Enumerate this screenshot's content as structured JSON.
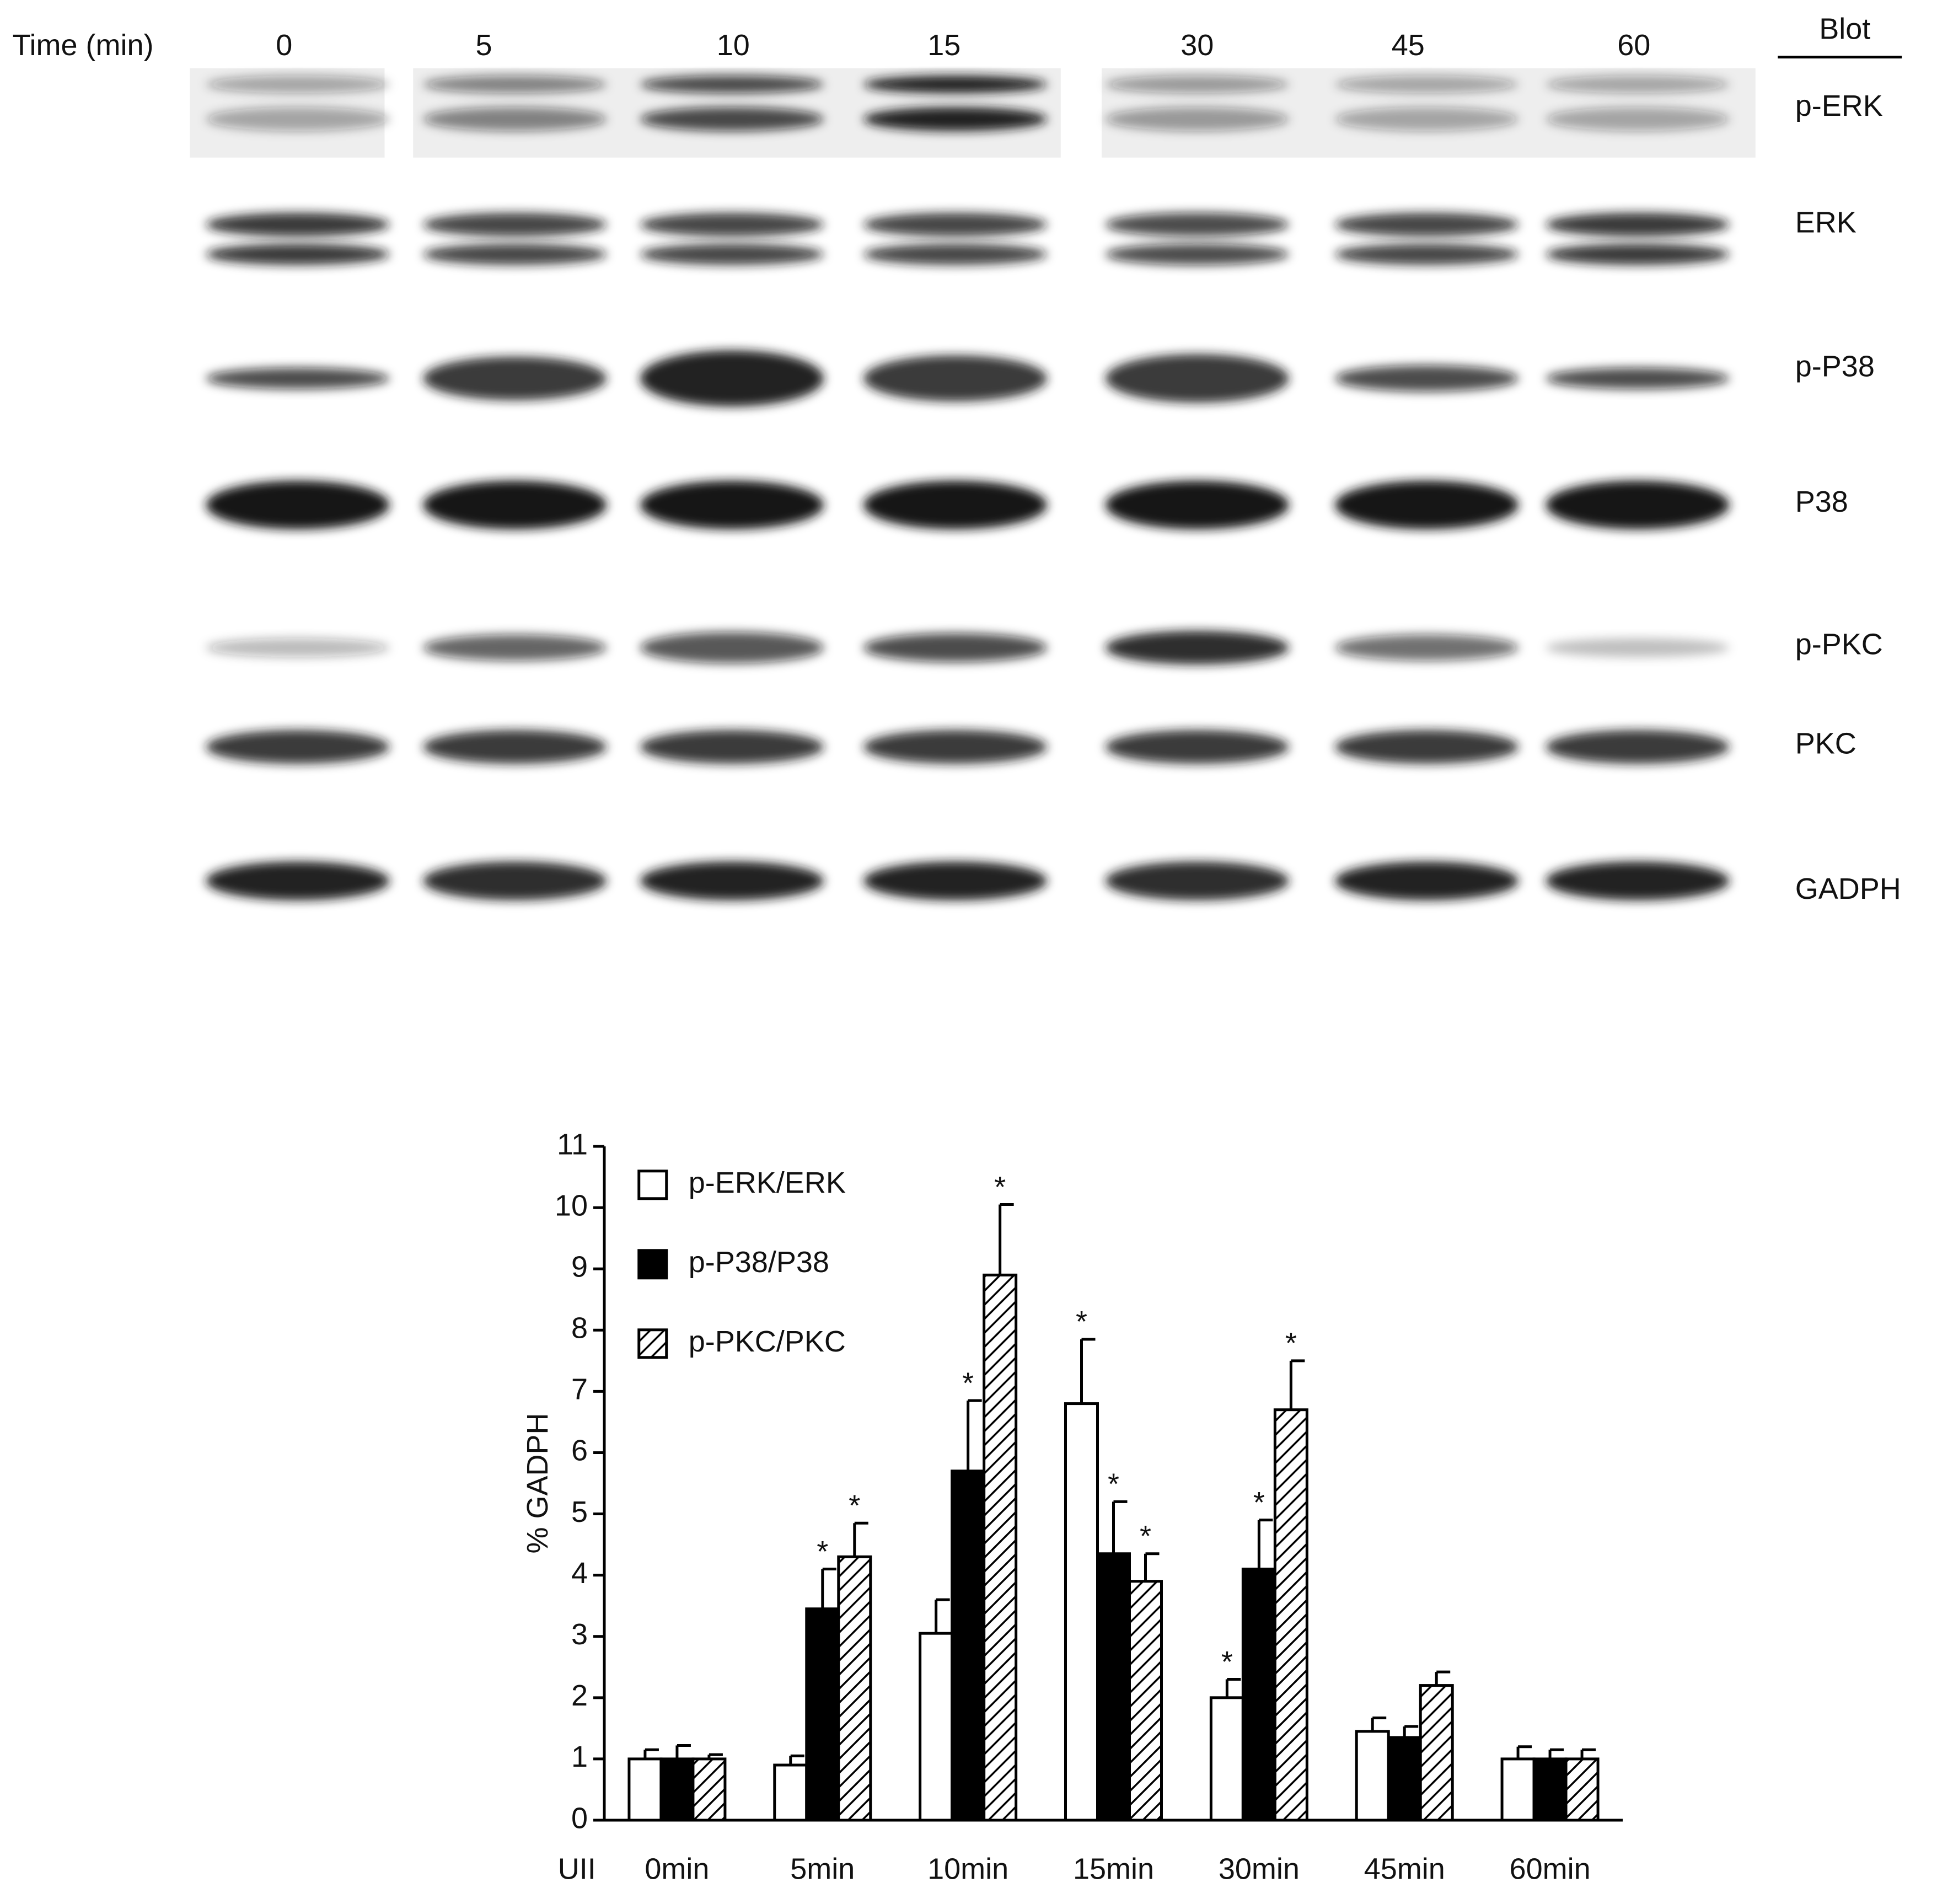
{
  "blot": {
    "time_label": "Time (min)",
    "times": [
      "0",
      "5",
      "10",
      "15",
      "30",
      "45",
      "60"
    ],
    "header": "Blot",
    "rows": [
      "p-ERK",
      "ERK",
      "p-P38",
      "P38",
      "p-PKC",
      "PKC",
      "GADPH"
    ]
  },
  "chart_data": {
    "type": "bar",
    "y_label": "% GADPH",
    "x_axis_title": "UII",
    "categories": [
      "0min",
      "5min",
      "10min",
      "15min",
      "30min",
      "45min",
      "60min"
    ],
    "ylim": [
      0,
      11
    ],
    "yticks": [
      0,
      1,
      2,
      3,
      4,
      5,
      6,
      7,
      8,
      9,
      10,
      11
    ],
    "grid": false,
    "legend": "upper left",
    "series": [
      {
        "name": "p-ERK/ERK",
        "color": "#ffffff",
        "values": [
          1.0,
          0.9,
          3.05,
          6.8,
          2.0,
          1.45,
          1.0
        ],
        "errors": [
          0.15,
          0.15,
          0.55,
          1.05,
          0.3,
          0.22,
          0.2
        ],
        "significance": [
          null,
          null,
          null,
          "*",
          "*",
          null,
          null
        ]
      },
      {
        "name": "p-P38/P38",
        "color": "#000000",
        "values": [
          1.0,
          3.45,
          5.7,
          4.35,
          4.1,
          1.35,
          1.0
        ],
        "errors": [
          0.22,
          0.65,
          1.15,
          0.85,
          0.8,
          0.18,
          0.15
        ],
        "significance": [
          null,
          "*",
          "*",
          "*",
          "*",
          null,
          null
        ]
      },
      {
        "name": "p-PKC/PKC",
        "color": "#000000",
        "pattern": "hatch",
        "values": [
          1.0,
          4.3,
          8.9,
          3.9,
          6.7,
          2.2,
          1.0
        ],
        "errors": [
          0.07,
          0.55,
          1.15,
          0.45,
          0.8,
          0.22,
          0.15
        ],
        "significance": [
          null,
          "*",
          "*",
          "*",
          "*",
          null,
          null
        ]
      }
    ]
  }
}
